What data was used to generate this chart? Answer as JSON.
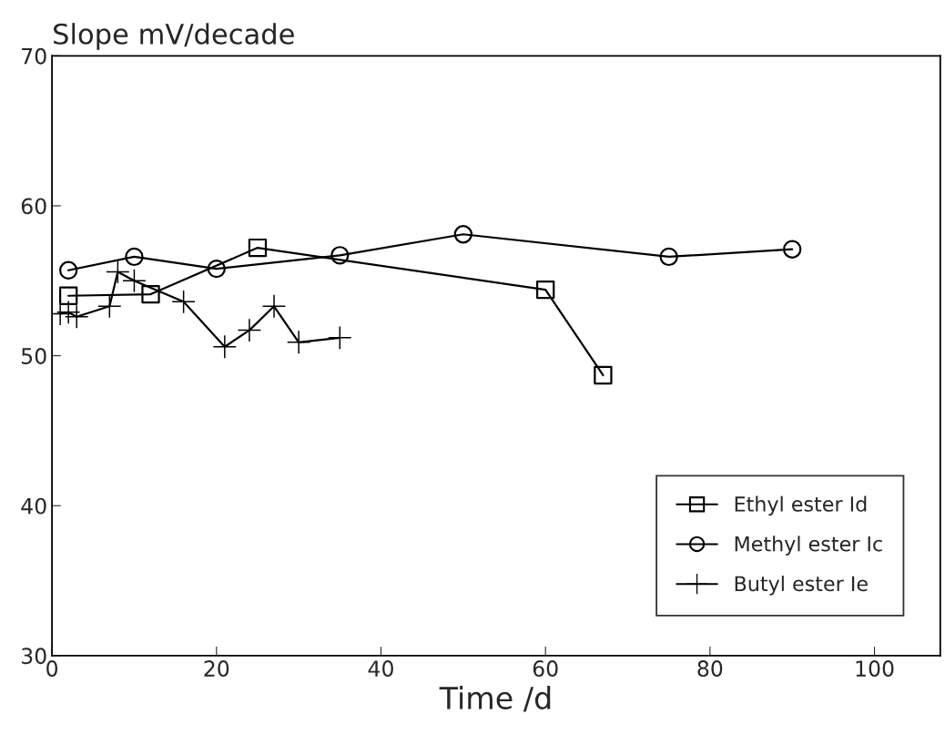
{
  "chart_data": {
    "type": "line",
    "ylabel": "Slope mV/decade",
    "xlabel": "Time /d",
    "xlim": [
      0,
      108
    ],
    "xticks": [
      0,
      20,
      40,
      60,
      80,
      100
    ],
    "ylim": [
      30,
      70
    ],
    "yticks": [
      30,
      40,
      50,
      60,
      70
    ],
    "grid": false,
    "legend": "bottom right",
    "series": [
      {
        "name": "Ethyl ester Id",
        "color": "#000000",
        "marker": "square",
        "x": [
          2,
          12,
          25,
          60,
          67
        ],
        "values": [
          54.0,
          54.1,
          57.2,
          54.4,
          48.7
        ]
      },
      {
        "name": "Methyl ester Ic",
        "color": "#000000",
        "marker": "circle",
        "x": [
          2,
          10,
          20,
          35,
          50,
          75,
          90
        ],
        "values": [
          55.7,
          56.6,
          55.8,
          56.7,
          58.1,
          56.6,
          57.1
        ]
      },
      {
        "name": "Butyl ester Ie",
        "color": "#000000",
        "marker": "cross",
        "x": [
          1,
          2,
          3,
          7,
          8,
          10,
          16,
          21,
          24,
          27,
          30,
          35
        ],
        "values": [
          52.8,
          52.9,
          52.6,
          53.3,
          55.6,
          55.0,
          53.6,
          50.6,
          51.7,
          53.3,
          50.9,
          51.2
        ]
      }
    ]
  }
}
